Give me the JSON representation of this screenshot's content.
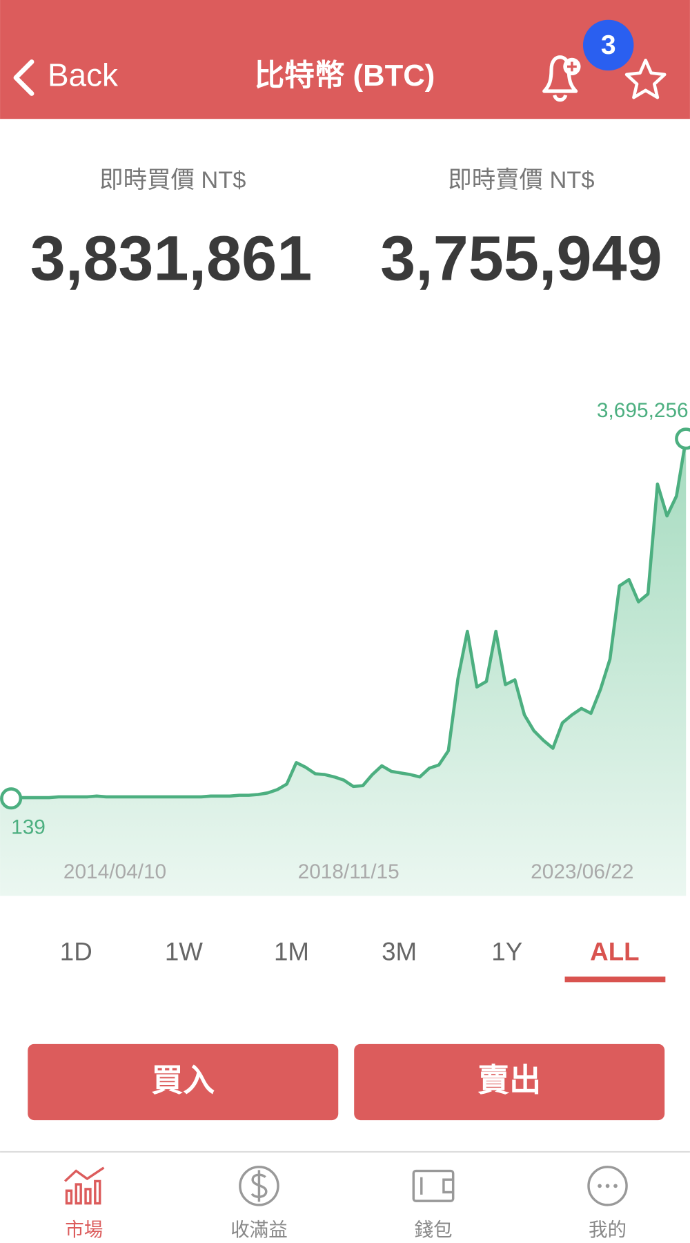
{
  "header": {
    "back": "Back",
    "title": "比特幣 (BTC)",
    "notification_count": 3
  },
  "prices": [
    {
      "label": "即時買價 NT$",
      "value": "3,831,861"
    },
    {
      "label": "即時賣價 NT$",
      "value": "3,755,949"
    }
  ],
  "chart_data": {
    "type": "line",
    "color": "#4caf80",
    "ylim": [
      -1000000,
      4000000
    ],
    "x_labels": [
      "2014/04/10",
      "2018/11/15",
      "2023/06/22"
    ],
    "values": [
      139,
      8300,
      8300,
      8300,
      8300,
      16500,
      16500,
      16500,
      16500,
      24600,
      16500,
      16500,
      16500,
      16500,
      16500,
      16500,
      16500,
      16500,
      16500,
      16500,
      16500,
      24600,
      24600,
      24600,
      32800,
      32800,
      41000,
      57400,
      90100,
      147300,
      368000,
      319000,
      253600,
      245400,
      220900,
      188200,
      122800,
      130900,
      245400,
      335300,
      278100,
      261700,
      245400,
      220900,
      310800,
      343500,
      490600,
      1226400,
      1716900,
      1144600,
      1201900,
      1716900,
      1169100,
      1218200,
      858500,
      695000,
      596900,
      515200,
      776800,
      858500,
      923900,
      874900,
      1120100,
      1430800,
      2182900,
      2248300,
      2019400,
      2101100,
      3229300,
      2902300,
      3106600,
      3695256
    ],
    "value_labels": [
      null,
      null,
      null,
      null,
      null,
      null,
      null,
      null,
      null,
      null,
      null,
      null,
      null,
      null,
      null,
      null,
      null,
      null,
      null,
      null,
      null,
      null,
      null,
      null,
      null,
      null,
      null,
      null,
      null,
      null,
      null,
      null,
      null,
      null,
      null,
      null,
      null,
      null,
      null,
      null,
      null,
      null,
      null,
      null,
      null,
      null,
      null,
      null,
      null,
      null,
      null,
      null,
      null,
      null,
      null,
      null,
      null,
      null,
      null,
      null,
      null,
      null,
      null,
      null,
      null,
      null,
      null,
      null,
      null,
      null,
      null,
      "3,695,256"
    ]
  },
  "ranges": [
    "1D",
    "1W",
    "1M",
    "3M",
    "1Y",
    "ALL"
  ],
  "active_range": "ALL",
  "actions": [
    "買入",
    "賣出"
  ],
  "tabs": [
    "市場",
    "收滿益",
    "錢包",
    "我的"
  ],
  "active_tab": "市場"
}
